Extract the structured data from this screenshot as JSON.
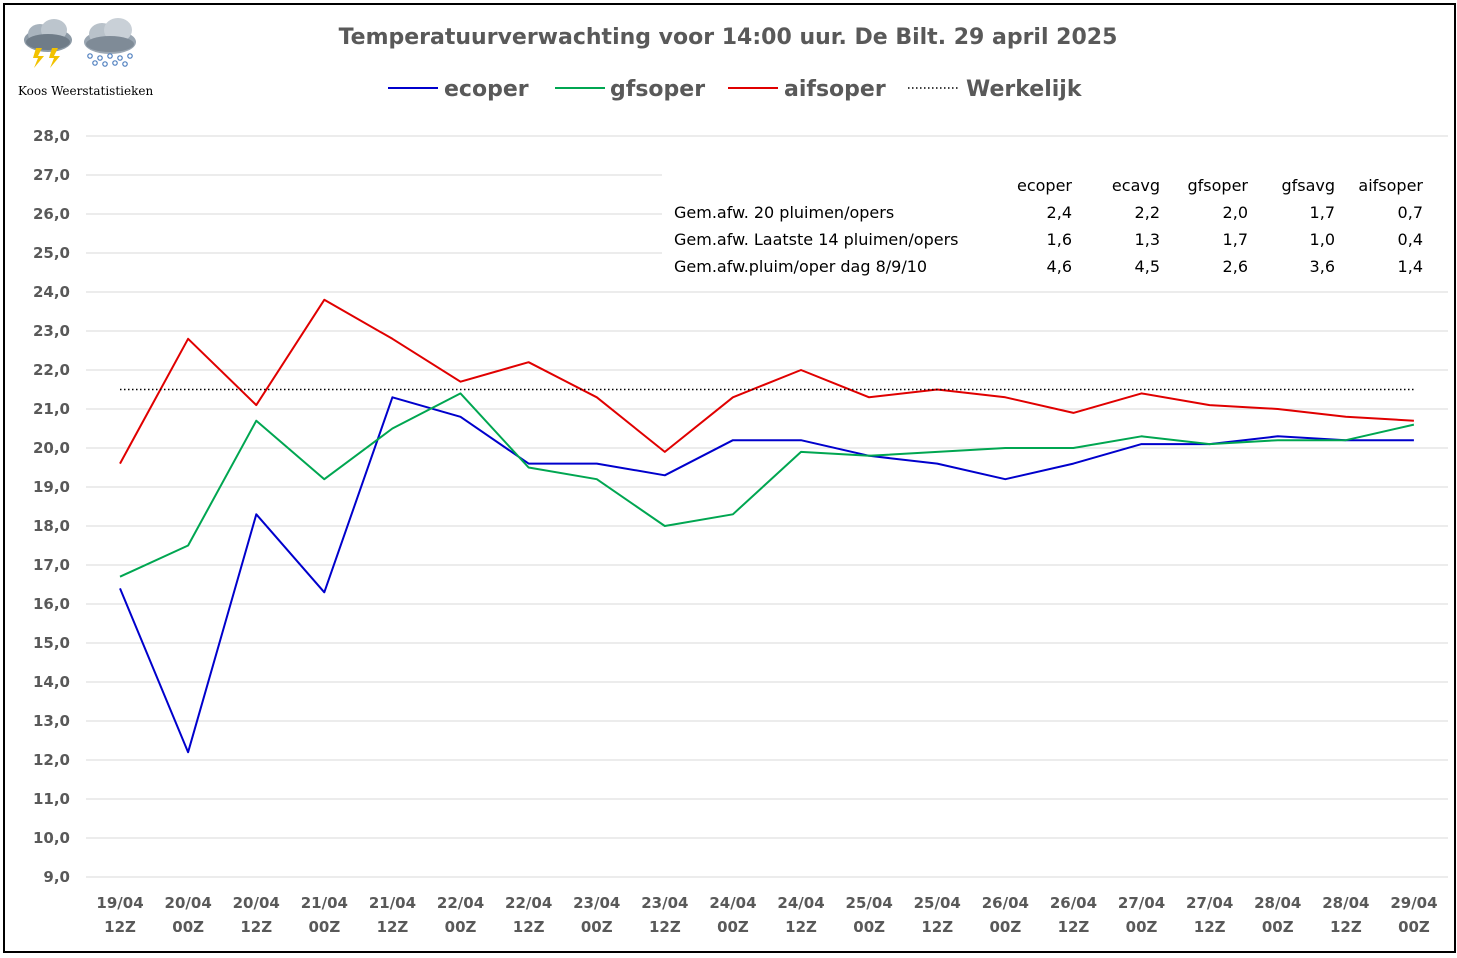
{
  "logo": {
    "credit": "Koos Weerstatistieken",
    "icons": [
      "thunderstorm-cloud-icon",
      "snow-cloud-icon"
    ]
  },
  "chart_data": {
    "type": "line",
    "title": "Temperatuurverwachting voor 14:00 uur. De Bilt. 29 april 2025",
    "xlabel": "",
    "ylabel": "",
    "ylim": [
      9.0,
      28.0
    ],
    "ytick_step": 1.0,
    "yticks": [
      "28,0",
      "27,0",
      "26,0",
      "25,0",
      "24,0",
      "23,0",
      "22,0",
      "21,0",
      "20,0",
      "19,0",
      "18,0",
      "17,0",
      "16,0",
      "15,0",
      "14,0",
      "13,0",
      "12,0",
      "11,0",
      "10,0",
      "9,0"
    ],
    "categories": [
      [
        "19/04",
        "12Z"
      ],
      [
        "20/04",
        "00Z"
      ],
      [
        "20/04",
        "12Z"
      ],
      [
        "21/04",
        "00Z"
      ],
      [
        "21/04",
        "12Z"
      ],
      [
        "22/04",
        "00Z"
      ],
      [
        "22/04",
        "12Z"
      ],
      [
        "23/04",
        "00Z"
      ],
      [
        "23/04",
        "12Z"
      ],
      [
        "24/04",
        "00Z"
      ],
      [
        "24/04",
        "12Z"
      ],
      [
        "25/04",
        "00Z"
      ],
      [
        "25/04",
        "12Z"
      ],
      [
        "26/04",
        "00Z"
      ],
      [
        "26/04",
        "12Z"
      ],
      [
        "27/04",
        "00Z"
      ],
      [
        "27/04",
        "12Z"
      ],
      [
        "28/04",
        "00Z"
      ],
      [
        "28/04",
        "12Z"
      ],
      [
        "29/04",
        "00Z"
      ]
    ],
    "grid": true,
    "legend_position": "top-center",
    "series": [
      {
        "name": "ecoper",
        "color": "#0000cc",
        "style": "solid",
        "values": [
          16.4,
          12.2,
          18.3,
          16.3,
          21.3,
          20.8,
          19.6,
          19.6,
          19.3,
          20.2,
          20.2,
          19.8,
          19.6,
          19.2,
          19.6,
          20.1,
          20.1,
          20.3,
          20.2,
          20.2
        ]
      },
      {
        "name": "gfsoper",
        "color": "#00a651",
        "style": "solid",
        "values": [
          16.7,
          17.5,
          20.7,
          19.2,
          20.5,
          21.4,
          19.5,
          19.2,
          18.0,
          18.3,
          19.9,
          19.8,
          19.9,
          20.0,
          20.0,
          20.3,
          20.1,
          20.2,
          20.2,
          20.6
        ]
      },
      {
        "name": "aifsoper",
        "color": "#e00000",
        "style": "solid",
        "values": [
          19.6,
          22.8,
          21.1,
          23.8,
          22.8,
          21.7,
          22.2,
          21.3,
          19.9,
          21.3,
          22.0,
          21.3,
          21.5,
          21.3,
          20.9,
          21.4,
          21.1,
          21.0,
          20.8,
          20.7
        ]
      },
      {
        "name": "Werkelijk",
        "color": "#000000",
        "style": "dotted",
        "values": [
          21.5,
          21.5,
          21.5,
          21.5,
          21.5,
          21.5,
          21.5,
          21.5,
          21.5,
          21.5,
          21.5,
          21.5,
          21.5,
          21.5,
          21.5,
          21.5,
          21.5,
          21.5,
          21.5,
          21.5
        ]
      }
    ],
    "stats_table": {
      "columns": [
        "ecoper",
        "ecavg",
        "gfsoper",
        "gfsavg",
        "aifsoper"
      ],
      "rows": [
        {
          "label": "Gem.afw. 20 pluimen/opers",
          "values": [
            "2,4",
            "2,2",
            "2,0",
            "1,7",
            "0,7"
          ]
        },
        {
          "label": "Gem.afw. Laatste 14 pluimen/opers",
          "values": [
            "1,6",
            "1,3",
            "1,7",
            "1,0",
            "0,4"
          ]
        },
        {
          "label": "Gem.afw.pluim/oper dag 8/9/10",
          "values": [
            "4,6",
            "4,5",
            "2,6",
            "3,6",
            "1,4"
          ]
        }
      ]
    }
  }
}
